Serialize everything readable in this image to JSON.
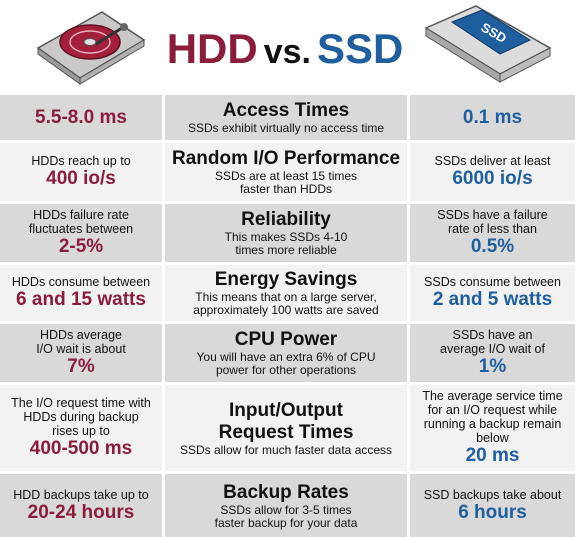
{
  "title": {
    "hdd": "HDD",
    "vs": "vs.",
    "ssd": "SSD"
  },
  "ssd_label": "SSD",
  "rows": [
    {
      "left_note": "",
      "left_value": "5.5-8.0 ms",
      "title": "Access Times",
      "desc": "SSDs exhibit virtually no access time",
      "right_note": "",
      "right_value": "0.1 ms"
    },
    {
      "left_note": "HDDs reach up to",
      "left_value": "400 io/s",
      "title": "Random I/O Performance",
      "desc": "SSDs are at least 15 times faster than HDDs",
      "right_note": "SSDs deliver at least",
      "right_value": "6000 io/s"
    },
    {
      "left_note": "HDDs failure rate fluctuates between",
      "left_value": "2-5%",
      "title": "Reliability",
      "desc": "This makes SSDs 4-10 times more reliable",
      "right_note": "SSDs have a failure rate of less than",
      "right_value": "0.5%"
    },
    {
      "left_note": "HDDs consume between",
      "left_value": "6 and 15 watts",
      "title": "Energy Savings",
      "desc": "This means that on a large server, approximately 100 watts are saved",
      "right_note": "SSDs consume between",
      "right_value": "2 and 5 watts"
    },
    {
      "left_note": "HDDs average I/O wait is about",
      "left_value": "7%",
      "title": "CPU Power",
      "desc": "You will have an extra 6% of CPU power for other operations",
      "right_note": "SSDs have an average I/O wait of",
      "right_value": "1%"
    },
    {
      "left_note": "The I/O request time with HDDs during backup rises up to",
      "left_value": "400-500 ms",
      "title": "Input/Output Request Times",
      "desc": "SSDs allow for much faster data access",
      "right_note": "The average service time for an I/O request while running a backup remain below",
      "right_value": "20 ms"
    },
    {
      "left_note": "HDD backups take up to",
      "left_value": "20-24 hours",
      "title": "Backup Rates",
      "desc": "SSDs allow for 3-5 times faster backup for your data",
      "right_note": "SSD backups take about",
      "right_value": "6 hours"
    }
  ]
}
